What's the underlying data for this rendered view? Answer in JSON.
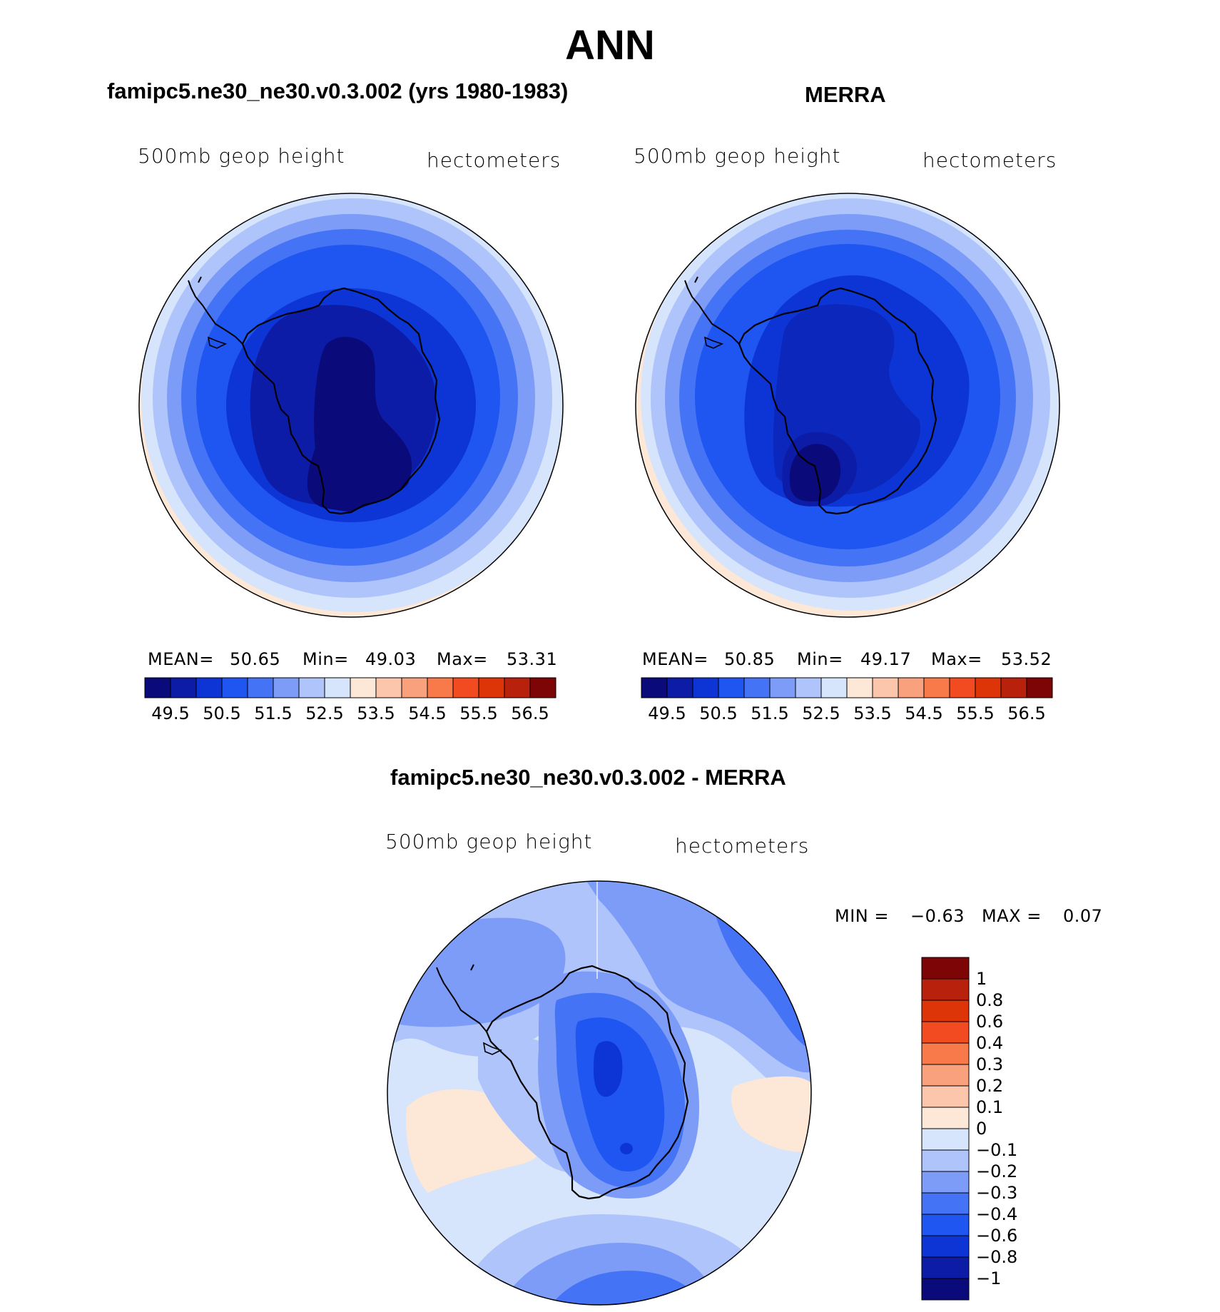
{
  "title": "ANN",
  "colors": {
    "ocean_light": "#fde7d6",
    "land_line": "#000000"
  },
  "panels": {
    "model": {
      "title": "famipc5.ne30_ne30.v0.3.002 (yrs 1980-1983)",
      "var_label": "500mb geop height",
      "units": "hectometers",
      "mean_label": "MEAN=",
      "mean": "50.65",
      "min_label": "Min=",
      "min": "49.03",
      "max_label": "Max=",
      "max": "53.31"
    },
    "obs": {
      "title": "MERRA",
      "var_label": "500mb geop height",
      "units": "hectometers",
      "mean_label": "MEAN=",
      "mean": "50.85",
      "min_label": "Min=",
      "min": "49.17",
      "max_label": "Max=",
      "max": "53.52"
    },
    "diff": {
      "title": "famipc5.ne30_ne30.v0.3.002 - MERRA",
      "var_label": "500mb geop height",
      "units": "hectometers",
      "min_label": "MIN =",
      "min": "−0.63",
      "max_label": "MAX =",
      "max": "0.07"
    }
  },
  "chart_data": [
    {
      "type": "heatmap",
      "title": "famipc5.ne30_ne30.v0.3.002 (yrs 1980-1983)",
      "projection": "south polar stereographic",
      "colorbar": {
        "orientation": "horizontal",
        "tick_labels": [
          "49.5",
          "50.5",
          "51.5",
          "52.5",
          "53.5",
          "54.5",
          "55.5",
          "56.5"
        ],
        "levels": [
          49.5,
          50,
          50.5,
          51,
          51.5,
          52,
          52.5,
          53,
          53.5,
          54,
          54.5,
          55,
          55.5,
          56,
          56.5
        ],
        "colors": [
          "#0a0a7a",
          "#0c1ca6",
          "#0d35d5",
          "#1f55f0",
          "#4474f5",
          "#7c9cf8",
          "#aec4fa",
          "#d6e4fc",
          "#fde7d6",
          "#fbc6ac",
          "#f9a07c",
          "#f8794a",
          "#f24b22",
          "#dd3408",
          "#b8210c",
          "#7e0505"
        ]
      },
      "stats": {
        "mean": 50.65,
        "min": 49.03,
        "max": 53.31
      }
    },
    {
      "type": "heatmap",
      "title": "MERRA",
      "projection": "south polar stereographic",
      "colorbar": {
        "orientation": "horizontal",
        "tick_labels": [
          "49.5",
          "50.5",
          "51.5",
          "52.5",
          "53.5",
          "54.5",
          "55.5",
          "56.5"
        ],
        "levels": [
          49.5,
          50,
          50.5,
          51,
          51.5,
          52,
          52.5,
          53,
          53.5,
          54,
          54.5,
          55,
          55.5,
          56,
          56.5
        ],
        "colors": [
          "#0a0a7a",
          "#0c1ca6",
          "#0d35d5",
          "#1f55f0",
          "#4474f5",
          "#7c9cf8",
          "#aec4fa",
          "#d6e4fc",
          "#fde7d6",
          "#fbc6ac",
          "#f9a07c",
          "#f8794a",
          "#f24b22",
          "#dd3408",
          "#b8210c",
          "#7e0505"
        ]
      },
      "stats": {
        "mean": 50.85,
        "min": 49.17,
        "max": 53.52
      }
    },
    {
      "type": "heatmap",
      "title": "famipc5.ne30_ne30.v0.3.002 - MERRA",
      "projection": "south polar stereographic",
      "colorbar": {
        "orientation": "vertical",
        "tick_labels": [
          "1",
          "0.8",
          "0.6",
          "0.4",
          "0.3",
          "0.2",
          "0.1",
          "0",
          "−0.1",
          "−0.2",
          "−0.3",
          "−0.4",
          "−0.6",
          "−0.8",
          "−1"
        ],
        "colors_top_to_bottom": [
          "#7e0505",
          "#b8210c",
          "#dd3408",
          "#f24b22",
          "#f8794a",
          "#f9a07c",
          "#fbc6ac",
          "#fde7d6",
          "#d6e4fc",
          "#aec4fa",
          "#7c9cf8",
          "#4474f5",
          "#1f55f0",
          "#0d35d5",
          "#0c1ca6",
          "#0a0a7a"
        ]
      },
      "stats": {
        "min": -0.63,
        "max": 0.07
      }
    }
  ]
}
